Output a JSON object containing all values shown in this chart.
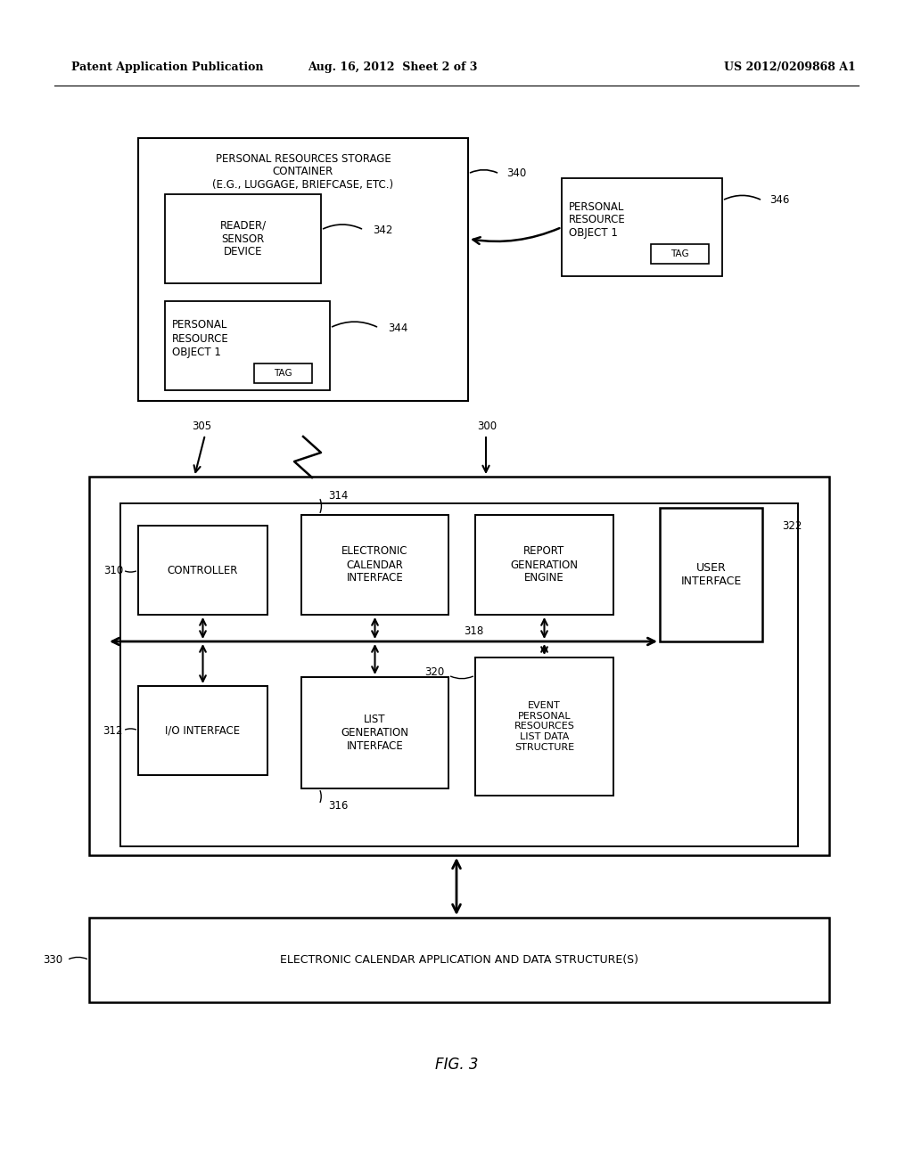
{
  "bg_color": "#ffffff",
  "header_left": "Patent Application Publication",
  "header_center": "Aug. 16, 2012  Sheet 2 of 3",
  "header_right": "US 2012/0209868 A1",
  "figure_label": "FIG. 3"
}
